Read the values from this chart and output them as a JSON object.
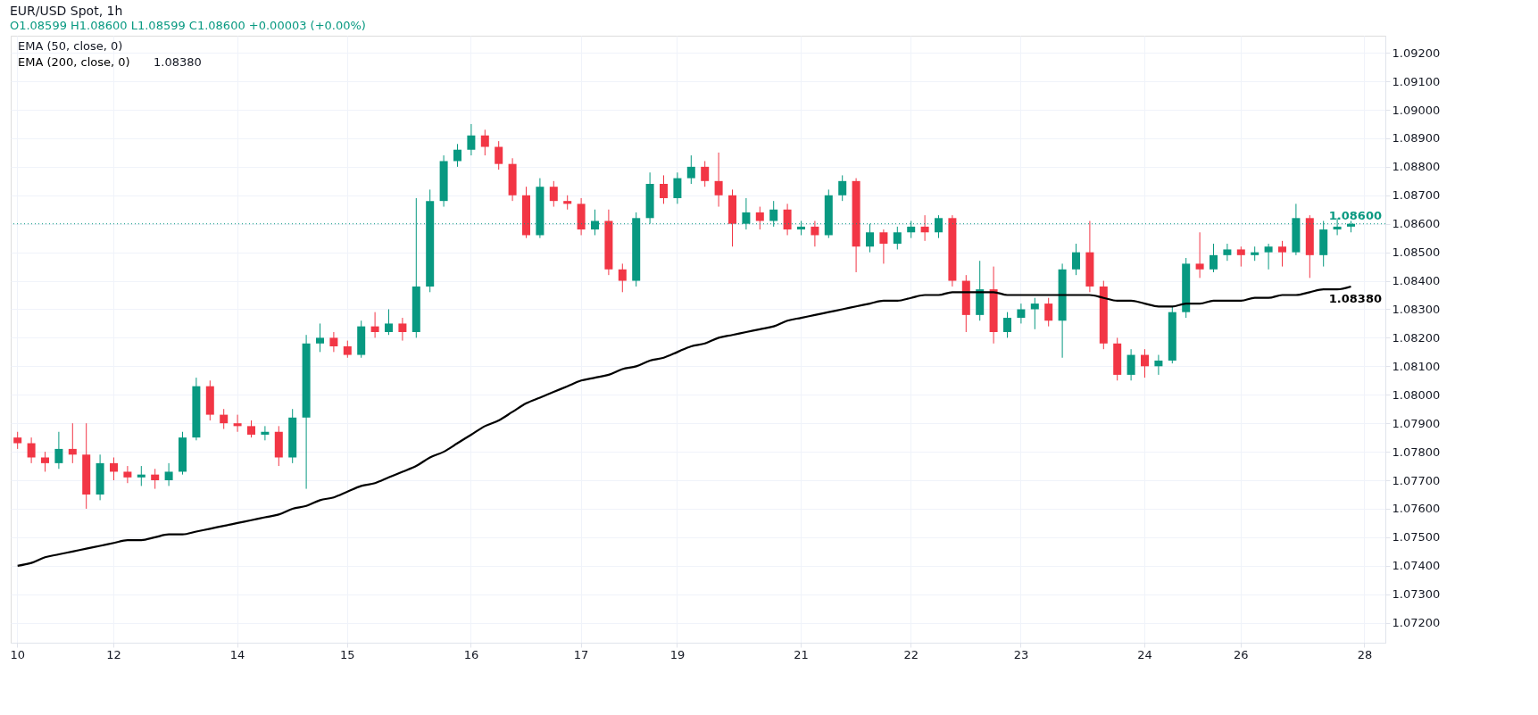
{
  "chart_data": {
    "type": "candlestick",
    "title": "EUR/USD Spot, 1h",
    "subtitle": "O1.08599  H1.08600  L1.08599  C1.08600  +0.00003 (+0.00%)",
    "categories": [
      "10",
      null,
      null,
      null,
      null,
      null,
      null,
      "12",
      null,
      null,
      null,
      null,
      null,
      null,
      null,
      null,
      "14",
      null,
      null,
      null,
      null,
      null,
      null,
      null,
      "15",
      null,
      null,
      null,
      null,
      null,
      null,
      null,
      null,
      "16",
      null,
      null,
      null,
      null,
      null,
      null,
      null,
      "17",
      null,
      null,
      null,
      null,
      null,
      null,
      "19",
      null,
      null,
      null,
      null,
      null,
      null,
      null,
      null,
      "21",
      null,
      null,
      null,
      null,
      null,
      null,
      null,
      "22",
      null,
      null,
      null,
      null,
      null,
      null,
      null,
      "23",
      null,
      null,
      null,
      null,
      null,
      null,
      null,
      null,
      "24",
      null,
      null,
      null,
      null,
      null,
      null,
      "26",
      null,
      null,
      null,
      null,
      null,
      null,
      null,
      null,
      "28",
      null
    ],
    "ohlc": [
      [
        1.0785,
        1.0787,
        1.0781,
        1.0783
      ],
      [
        1.0783,
        1.0785,
        1.0776,
        1.0778
      ],
      [
        1.0778,
        1.078,
        1.0773,
        1.0776
      ],
      [
        1.0776,
        1.0787,
        1.0774,
        1.0781
      ],
      [
        1.0781,
        1.079,
        1.0776,
        1.0779
      ],
      [
        1.0779,
        1.079,
        1.076,
        1.0765
      ],
      [
        1.0765,
        1.0779,
        1.0763,
        1.0776
      ],
      [
        1.0776,
        1.0778,
        1.077,
        1.0773
      ],
      [
        1.0773,
        1.0775,
        1.0769,
        1.0771
      ],
      [
        1.0771,
        1.0775,
        1.0768,
        1.0772
      ],
      [
        1.0772,
        1.0774,
        1.0767,
        1.077
      ],
      [
        1.077,
        1.0776,
        1.0768,
        1.0773
      ],
      [
        1.0773,
        1.0787,
        1.0772,
        1.0785
      ],
      [
        1.0785,
        1.0806,
        1.0784,
        1.0803
      ],
      [
        1.0803,
        1.0805,
        1.0791,
        1.0793
      ],
      [
        1.0793,
        1.0795,
        1.0788,
        1.079
      ],
      [
        1.079,
        1.0793,
        1.0787,
        1.0789
      ],
      [
        1.0789,
        1.0791,
        1.0785,
        1.0786
      ],
      [
        1.0786,
        1.0789,
        1.0784,
        1.0787
      ],
      [
        1.0787,
        1.0789,
        1.0775,
        1.0778
      ],
      [
        1.0778,
        1.0795,
        1.0776,
        1.0792
      ],
      [
        1.0792,
        1.0821,
        1.0767,
        1.0818
      ],
      [
        1.0818,
        1.0825,
        1.0815,
        1.082
      ],
      [
        1.082,
        1.0822,
        1.0815,
        1.0817
      ],
      [
        1.0817,
        1.0819,
        1.0813,
        1.0814
      ],
      [
        1.0814,
        1.0826,
        1.0813,
        1.0824
      ],
      [
        1.0824,
        1.0829,
        1.082,
        1.0822
      ],
      [
        1.0822,
        1.083,
        1.0821,
        1.0825
      ],
      [
        1.0825,
        1.0827,
        1.0819,
        1.0822
      ],
      [
        1.0822,
        1.0869,
        1.082,
        1.0838
      ],
      [
        1.0838,
        1.0872,
        1.0836,
        1.0868
      ],
      [
        1.0868,
        1.0884,
        1.0866,
        1.0882
      ],
      [
        1.0882,
        1.0888,
        1.088,
        1.0886
      ],
      [
        1.0886,
        1.0895,
        1.0884,
        1.0891
      ],
      [
        1.0891,
        1.0893,
        1.0884,
        1.0887
      ],
      [
        1.0887,
        1.0889,
        1.0879,
        1.0881
      ],
      [
        1.0881,
        1.0883,
        1.0868,
        1.087
      ],
      [
        1.087,
        1.0873,
        1.0855,
        1.0856
      ],
      [
        1.0856,
        1.0876,
        1.0855,
        1.0873
      ],
      [
        1.0873,
        1.0875,
        1.0866,
        1.0868
      ],
      [
        1.0868,
        1.087,
        1.0865,
        1.0867
      ],
      [
        1.0867,
        1.0869,
        1.0856,
        1.0858
      ],
      [
        1.0858,
        1.0865,
        1.0856,
        1.0861
      ],
      [
        1.0861,
        1.0865,
        1.0842,
        1.0844
      ],
      [
        1.0844,
        1.0846,
        1.0836,
        1.084
      ],
      [
        1.084,
        1.0864,
        1.0838,
        1.0862
      ],
      [
        1.0862,
        1.0878,
        1.086,
        1.0874
      ],
      [
        1.0874,
        1.0877,
        1.0867,
        1.0869
      ],
      [
        1.0869,
        1.0878,
        1.0867,
        1.0876
      ],
      [
        1.0876,
        1.0884,
        1.0874,
        1.088
      ],
      [
        1.088,
        1.0882,
        1.0873,
        1.0875
      ],
      [
        1.0875,
        1.0885,
        1.0866,
        1.087
      ],
      [
        1.087,
        1.0872,
        1.0852,
        1.086
      ],
      [
        1.086,
        1.0869,
        1.0858,
        1.0864
      ],
      [
        1.0864,
        1.0866,
        1.0858,
        1.0861
      ],
      [
        1.0861,
        1.0868,
        1.0859,
        1.0865
      ],
      [
        1.0865,
        1.0867,
        1.0856,
        1.0858
      ],
      [
        1.0858,
        1.0861,
        1.0856,
        1.0859
      ],
      [
        1.0859,
        1.0861,
        1.0852,
        1.0856
      ],
      [
        1.0856,
        1.0872,
        1.0855,
        1.087
      ],
      [
        1.087,
        1.0877,
        1.0868,
        1.0875
      ],
      [
        1.0875,
        1.0876,
        1.0843,
        1.0852
      ],
      [
        1.0852,
        1.086,
        1.085,
        1.0857
      ],
      [
        1.0857,
        1.0858,
        1.0846,
        1.0853
      ],
      [
        1.0853,
        1.0859,
        1.0851,
        1.0857
      ],
      [
        1.0857,
        1.0861,
        1.0855,
        1.0859
      ],
      [
        1.0859,
        1.0863,
        1.0854,
        1.0857
      ],
      [
        1.0857,
        1.0863,
        1.0855,
        1.0862
      ],
      [
        1.0862,
        1.0863,
        1.0838,
        1.084
      ],
      [
        1.084,
        1.0842,
        1.0822,
        1.0828
      ],
      [
        1.0828,
        1.0847,
        1.0826,
        1.0837
      ],
      [
        1.0837,
        1.0845,
        1.0818,
        1.0822
      ],
      [
        1.0822,
        1.0829,
        1.082,
        1.0827
      ],
      [
        1.0827,
        1.0832,
        1.0825,
        1.083
      ],
      [
        1.083,
        1.0834,
        1.0823,
        1.0832
      ],
      [
        1.0832,
        1.0834,
        1.0824,
        1.0826
      ],
      [
        1.0826,
        1.0846,
        1.0813,
        1.0844
      ],
      [
        1.0844,
        1.0853,
        1.0842,
        1.085
      ],
      [
        1.085,
        1.0861,
        1.0836,
        1.0838
      ],
      [
        1.0838,
        1.084,
        1.0816,
        1.0818
      ],
      [
        1.0818,
        1.082,
        1.0805,
        1.0807
      ],
      [
        1.0807,
        1.0816,
        1.0805,
        1.0814
      ],
      [
        1.0814,
        1.0816,
        1.0806,
        1.081
      ],
      [
        1.081,
        1.0814,
        1.0807,
        1.0812
      ],
      [
        1.0812,
        1.0831,
        1.0811,
        1.0829
      ],
      [
        1.0829,
        1.0848,
        1.0827,
        1.0846
      ],
      [
        1.0846,
        1.0857,
        1.0841,
        1.0844
      ],
      [
        1.0844,
        1.0853,
        1.0843,
        1.0849
      ],
      [
        1.0849,
        1.0853,
        1.0847,
        1.0851
      ],
      [
        1.0851,
        1.0852,
        1.0845,
        1.0849
      ],
      [
        1.0849,
        1.0852,
        1.0847,
        1.085
      ],
      [
        1.085,
        1.0853,
        1.0844,
        1.0852
      ],
      [
        1.0852,
        1.0854,
        1.0845,
        1.085
      ],
      [
        1.085,
        1.0867,
        1.0849,
        1.0862
      ],
      [
        1.0862,
        1.0863,
        1.0841,
        1.0849
      ],
      [
        1.0849,
        1.0861,
        1.0845,
        1.0858
      ],
      [
        1.0858,
        1.0862,
        1.0856,
        1.0859
      ],
      [
        1.0859,
        1.0861,
        1.0857,
        1.086
      ],
      null,
      null
    ],
    "series": [
      {
        "type": "line",
        "name": "EMA (200, close, 0)",
        "color": "#000000",
        "values": [
          1.074,
          1.0741,
          1.0743,
          1.0744,
          1.0745,
          1.0746,
          1.0747,
          1.0748,
          1.0749,
          1.0749,
          1.075,
          1.0751,
          1.0751,
          1.0752,
          1.0753,
          1.0754,
          1.0755,
          1.0756,
          1.0757,
          1.0758,
          1.076,
          1.0761,
          1.0763,
          1.0764,
          1.0766,
          1.0768,
          1.0769,
          1.0771,
          1.0773,
          1.0775,
          1.0778,
          1.078,
          1.0783,
          1.0786,
          1.0789,
          1.0791,
          1.0794,
          1.0797,
          1.0799,
          1.0801,
          1.0803,
          1.0805,
          1.0806,
          1.0807,
          1.0809,
          1.081,
          1.0812,
          1.0813,
          1.0815,
          1.0817,
          1.0818,
          1.082,
          1.0821,
          1.0822,
          1.0823,
          1.0824,
          1.0826,
          1.0827,
          1.0828,
          1.0829,
          1.083,
          1.0831,
          1.0832,
          1.0833,
          1.0833,
          1.0834,
          1.0835,
          1.0835,
          1.0836,
          1.0836,
          1.0836,
          1.0836,
          1.0835,
          1.0835,
          1.0835,
          1.0835,
          1.0835,
          1.0835,
          1.0835,
          1.0834,
          1.0833,
          1.0833,
          1.0832,
          1.0831,
          1.0831,
          1.0832,
          1.0832,
          1.0833,
          1.0833,
          1.0833,
          1.0834,
          1.0834,
          1.0835,
          1.0835,
          1.0836,
          1.0837,
          1.0837,
          1.0838,
          null,
          null
        ]
      }
    ],
    "ylim": [
      1.0713,
      1.0926
    ],
    "yticks": [
      {
        "value": 1.072,
        "label": "1.07200"
      },
      {
        "value": 1.073,
        "label": "1.07300"
      },
      {
        "value": 1.074,
        "label": "1.07400"
      },
      {
        "value": 1.075,
        "label": "1.07500"
      },
      {
        "value": 1.076,
        "label": "1.07600"
      },
      {
        "value": 1.077,
        "label": "1.07700"
      },
      {
        "value": 1.078,
        "label": "1.07800"
      },
      {
        "value": 1.079,
        "label": "1.07900"
      },
      {
        "value": 1.08,
        "label": "1.08000"
      },
      {
        "value": 1.081,
        "label": "1.08100"
      },
      {
        "value": 1.082,
        "label": "1.08200"
      },
      {
        "value": 1.083,
        "label": "1.08300"
      },
      {
        "value": 1.084,
        "label": "1.08400"
      },
      {
        "value": 1.085,
        "label": "1.08500"
      },
      {
        "value": 1.086,
        "label": "1.08600"
      },
      {
        "value": 1.087,
        "label": "1.08700"
      },
      {
        "value": 1.088,
        "label": "1.08800"
      },
      {
        "value": 1.089,
        "label": "1.08900"
      },
      {
        "value": 1.09,
        "label": "1.09000"
      },
      {
        "value": 1.091,
        "label": "1.09100"
      },
      {
        "value": 1.092,
        "label": "1.09200"
      }
    ],
    "ref_lines": [
      {
        "axis": "y",
        "value": 1.086,
        "label": "1.08600",
        "color": "#089981",
        "line_style": "dotted"
      }
    ],
    "annotations": [
      "EMA (50, close, 0)",
      "1.08380",
      {
        "text": "1.08380",
        "y": 1.0838
      }
    ],
    "grid": true,
    "legend": "top left"
  }
}
